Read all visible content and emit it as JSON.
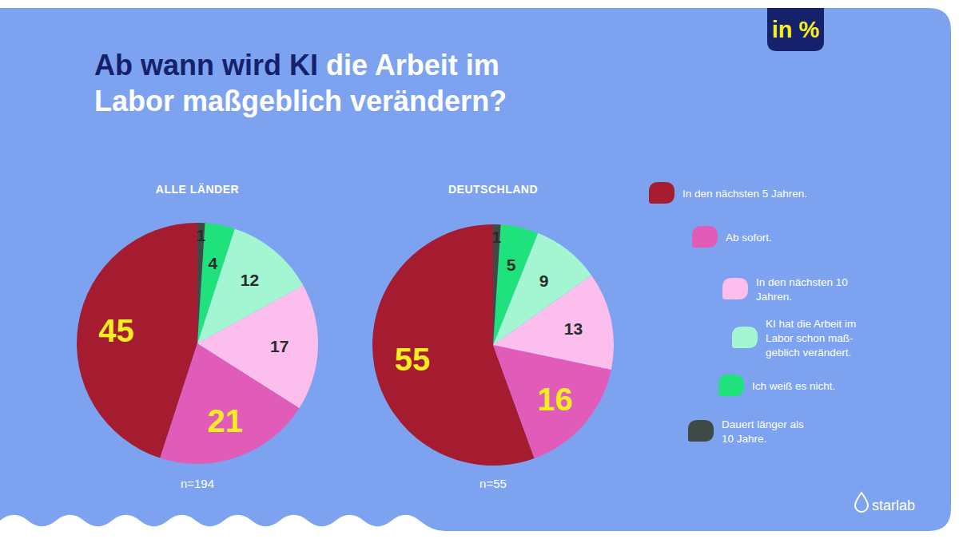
{
  "title": "Ab wann wird KI die Arbeit im\nLabor maßgeblich verändern?",
  "annotations": [
    "in %",
    "starlab"
  ],
  "chart_data": [
    {
      "type": "pie",
      "title": "ALLE LÄNDER",
      "categories": [
        "In den nächsten 5 Jahren.",
        "Ab sofort.",
        "In den nächsten 10\nJahren.",
        "KI hat die Arbeit im\nLabor schon maß-\ngeblich verändert.",
        "Ich weiß es nicht.",
        "Dauert länger als\n10 Jahre."
      ],
      "values": [
        45,
        21,
        17,
        12,
        4,
        1
      ],
      "colors": [
        "#a51c30",
        "#e15bb8",
        "#fcbeec",
        "#a4f5d2",
        "#1fe27c",
        "#3d4a45"
      ],
      "data_labels": true,
      "annotations": [
        "n=194"
      ]
    },
    {
      "type": "pie",
      "title": "DEUTSCHLAND",
      "categories": [
        "In den nächsten 5 Jahren.",
        "Ab sofort.",
        "In den nächsten 10\nJahren.",
        "KI hat die Arbeit im\nLabor schon maß-\ngeblich verändert.",
        "Ich weiß es nicht.",
        "Dauert länger als\n10 Jahre."
      ],
      "values": [
        55,
        16,
        13,
        9,
        5,
        1
      ],
      "colors": [
        "#a51c30",
        "#e15bb8",
        "#fcbeec",
        "#a4f5d2",
        "#1fe27c",
        "#3d4a45"
      ],
      "data_labels": true,
      "annotations": [
        "n=55"
      ]
    }
  ]
}
